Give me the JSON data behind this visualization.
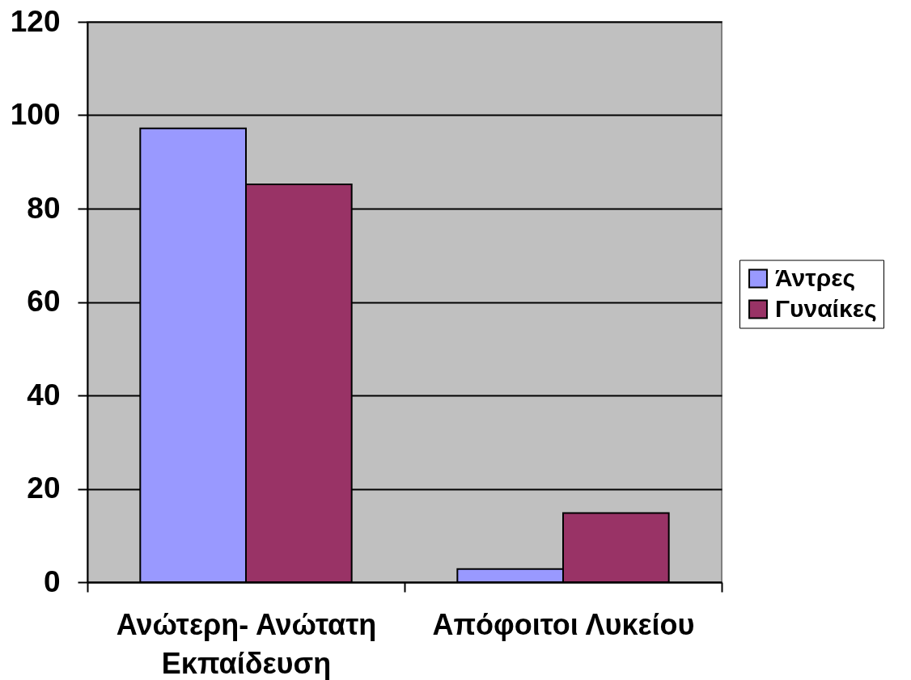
{
  "chart_data": {
    "type": "bar",
    "categories": [
      "Ανώτερη- Ανώτατη Εκπαίδευση",
      "Απόφοιτοι Λυκείου"
    ],
    "series": [
      {
        "name": "Άντρες",
        "color": "#9999ff",
        "values": [
          97.2,
          2.8
        ]
      },
      {
        "name": "Γυναίκες",
        "color": "#993366",
        "values": [
          85.2,
          14.8
        ]
      }
    ],
    "ylim": [
      0,
      120
    ],
    "yticks": [
      0,
      20,
      40,
      60,
      80,
      100,
      120
    ],
    "grid": "y",
    "legend": "right"
  }
}
